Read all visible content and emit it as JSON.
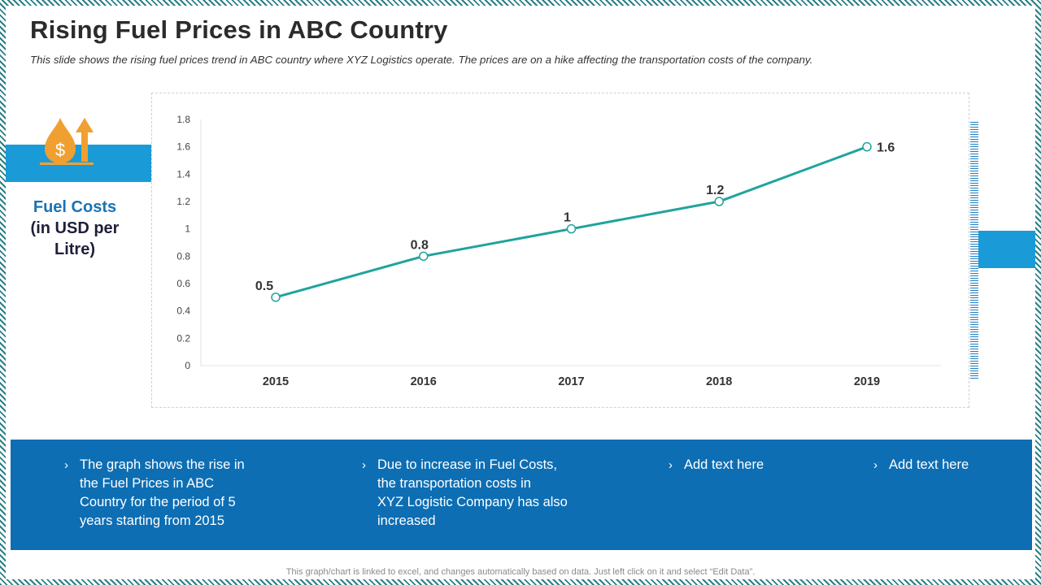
{
  "slide": {
    "title": "Rising Fuel Prices in ABC Country",
    "subtitle": "This slide shows the rising fuel prices trend in ABC country where XYZ Logistics operate. The prices are on a hike affecting the transportation  costs of the company.",
    "footer_note": "This graph/chart is linked to excel, and changes automatically based on data. Just left click on it and select “Edit Data”."
  },
  "side_label": {
    "line1": "Fuel Costs",
    "line2": "(in USD per",
    "line3": "Litre)"
  },
  "icon": {
    "name": "fuel-price-rise-icon",
    "color": "#f0a030"
  },
  "colors": {
    "line": "#20a39e",
    "band": "#1a9bd7",
    "bottom_band": "#0d6eb4",
    "title": "#2b2b2b"
  },
  "chart_data": {
    "type": "line",
    "categories": [
      "2015",
      "2016",
      "2017",
      "2018",
      "2019"
    ],
    "series": [
      {
        "name": "Fuel Costs",
        "values": [
          0.5,
          0.8,
          1,
          1.2,
          1.6
        ]
      }
    ],
    "data_labels": [
      "0.5",
      "0.8",
      "1",
      "1.2",
      "1.6"
    ],
    "yticks": [
      "0",
      "0.2",
      "0.4",
      "0.6",
      "0.8",
      "1",
      "1.2",
      "1.4",
      "1.6",
      "1.8"
    ],
    "ylim": [
      0,
      1.8
    ],
    "title": "",
    "xlabel": "",
    "ylabel": "Fuel Costs (in USD per Litre)",
    "grid": false
  },
  "bullets": [
    {
      "lines": [
        "The graph shows the rise in",
        "the Fuel Prices in ABC",
        "Country for the period of 5",
        "years starting from 2015"
      ]
    },
    {
      "lines": [
        "Due to increase in Fuel Costs,",
        "the transportation costs in",
        "XYZ Logistic Company has also",
        "increased"
      ]
    },
    {
      "lines": [
        "Add text here"
      ]
    },
    {
      "lines": [
        "Add text here"
      ]
    }
  ]
}
